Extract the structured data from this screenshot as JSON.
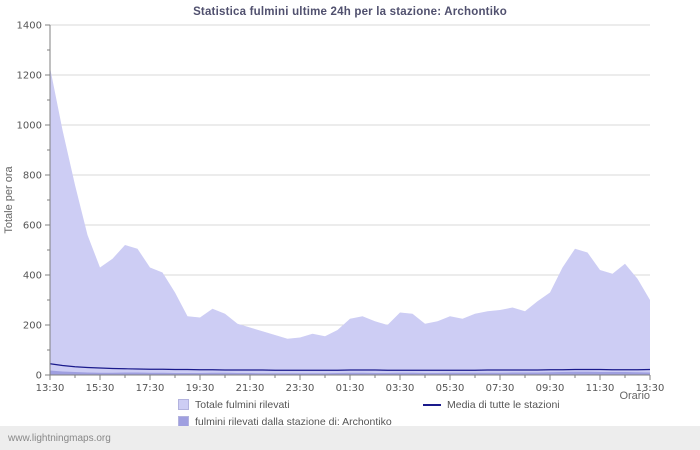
{
  "footer": {
    "watermark": "www.lightningmaps.org"
  },
  "chart_data": {
    "type": "area",
    "title": "Statistica fulmini ultime 24h per la stazione: Archontiko",
    "xlabel": "Orario",
    "ylabel": "Totale per ora",
    "ylim": [
      0,
      1400
    ],
    "grid": true,
    "legend_position": "bottom",
    "yticks": [
      0,
      200,
      400,
      600,
      800,
      1000,
      1200,
      1400
    ],
    "xtick_labels": [
      "13:30",
      "15:30",
      "17:30",
      "19:30",
      "21:30",
      "23:30",
      "01:30",
      "03:30",
      "05:30",
      "07:30",
      "09:30",
      "11:30",
      "13:30"
    ],
    "x": [
      "13:30",
      "14:00",
      "14:30",
      "15:00",
      "15:30",
      "16:00",
      "16:30",
      "17:00",
      "17:30",
      "18:00",
      "18:30",
      "19:00",
      "19:30",
      "20:00",
      "20:30",
      "21:00",
      "21:30",
      "22:00",
      "22:30",
      "23:00",
      "23:30",
      "00:00",
      "00:30",
      "01:00",
      "01:30",
      "02:00",
      "02:30",
      "03:00",
      "03:30",
      "04:00",
      "04:30",
      "05:00",
      "05:30",
      "06:00",
      "06:30",
      "07:00",
      "07:30",
      "08:00",
      "08:30",
      "09:00",
      "09:30",
      "10:00",
      "10:30",
      "11:00",
      "11:30",
      "12:00",
      "12:30",
      "13:00",
      "13:30"
    ],
    "colors": {
      "grid": "#d9d9d9",
      "axis": "#808080",
      "text": "#555555",
      "title": "#50506e"
    },
    "series": [
      {
        "name": "Totale fulmini rilevati",
        "type": "area",
        "color": "#cdcdf4",
        "values": [
          1230,
          980,
          760,
          560,
          430,
          465,
          520,
          505,
          430,
          410,
          330,
          235,
          230,
          265,
          245,
          205,
          190,
          175,
          160,
          145,
          150,
          165,
          155,
          180,
          225,
          235,
          215,
          200,
          250,
          245,
          205,
          215,
          235,
          225,
          245,
          255,
          260,
          270,
          255,
          295,
          330,
          430,
          505,
          490,
          420,
          405,
          445,
          385,
          300
        ]
      },
      {
        "name": "fulmini rilevati dalla stazione di: Archontiko",
        "type": "area",
        "color": "#9f9fe0",
        "values": [
          18,
          14,
          12,
          10,
          9,
          9,
          10,
          10,
          9,
          9,
          8,
          8,
          8,
          9,
          9,
          8,
          8,
          7,
          7,
          7,
          7,
          7,
          7,
          8,
          9,
          9,
          8,
          8,
          9,
          9,
          8,
          8,
          9,
          9,
          9,
          9,
          9,
          10,
          10,
          10,
          11,
          12,
          13,
          13,
          12,
          12,
          12,
          11,
          10
        ]
      },
      {
        "name": "Media di tutte le stazioni",
        "type": "line",
        "color": "#1a1a8c",
        "values": [
          45,
          38,
          33,
          30,
          28,
          26,
          25,
          24,
          23,
          23,
          22,
          22,
          21,
          21,
          20,
          20,
          20,
          20,
          19,
          19,
          19,
          19,
          19,
          19,
          20,
          20,
          20,
          19,
          19,
          19,
          19,
          19,
          19,
          19,
          19,
          20,
          20,
          20,
          20,
          20,
          21,
          21,
          22,
          22,
          22,
          21,
          21,
          21,
          22
        ]
      }
    ]
  }
}
